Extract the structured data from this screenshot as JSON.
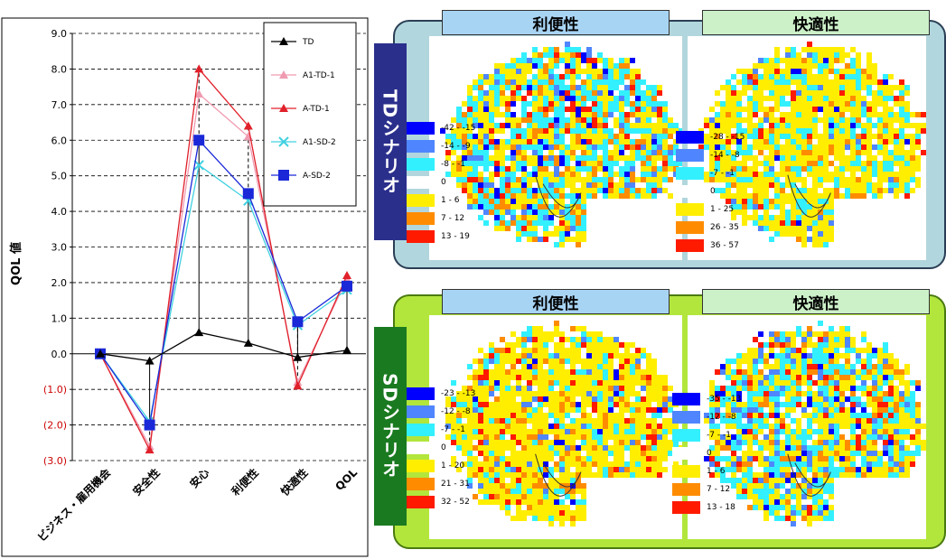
{
  "chart_data": [
    {
      "type": "line",
      "ylabel": "QOL 値",
      "ylim": [
        -3.0,
        9.0
      ],
      "yticks": [
        "9.0",
        "8.0",
        "7.0",
        "6.0",
        "5.0",
        "4.0",
        "3.0",
        "2.0",
        "1.0",
        "0.0",
        "(1.0)",
        "(2.0)",
        "(3.0)"
      ],
      "categories": [
        "ビジネス・雇用機会",
        "安全性",
        "安心",
        "利便性",
        "快適性",
        "QOL"
      ],
      "grid": true,
      "legend_position": "top-right",
      "series": [
        {
          "name": "TD",
          "color": "#000000",
          "marker": "triangle",
          "values": [
            0.0,
            -0.2,
            0.6,
            0.3,
            -0.1,
            0.1
          ]
        },
        {
          "name": "A1-TD-1",
          "color": "#f09ab0",
          "marker": "triangle",
          "values": [
            0.0,
            -2.6,
            7.3,
            6.1,
            -0.8,
            2.1
          ]
        },
        {
          "name": "A-TD-1",
          "color": "#e0202a",
          "marker": "triangle",
          "values": [
            0.0,
            -2.7,
            8.0,
            6.4,
            -0.9,
            2.2
          ]
        },
        {
          "name": "A1-SD-2",
          "color": "#40d0e0",
          "marker": "x",
          "values": [
            0.0,
            -1.9,
            5.3,
            4.3,
            0.8,
            1.8
          ]
        },
        {
          "name": "A-SD-2",
          "color": "#1a28d8",
          "marker": "square",
          "values": [
            0.0,
            -2.0,
            6.0,
            4.5,
            0.9,
            1.9
          ]
        }
      ]
    },
    {
      "type": "heatmap",
      "scenario": "TDシナリオ",
      "maps": [
        {
          "title": "利便性",
          "legend": [
            "-42 - -15",
            "-14 - -9",
            "-8 - -1",
            "0",
            "1 - 6",
            "7 - 12",
            "13 - 19"
          ]
        },
        {
          "title": "快適性",
          "legend": [
            "-28 - -15",
            "-14 - -8",
            "-7 - -1",
            "0",
            "1 - 25",
            "26 - 35",
            "36 - 57"
          ]
        }
      ]
    },
    {
      "type": "heatmap",
      "scenario": "SDシナリオ",
      "maps": [
        {
          "title": "利便性",
          "legend": [
            "-23 - -13",
            "-12 - -8",
            "-7 - -1",
            "0",
            "1 - 20",
            "21 - 31",
            "32 - 52"
          ]
        },
        {
          "title": "快適性",
          "legend": [
            "-35 - -13",
            "-12 - -8",
            "-7 - -1",
            "0",
            "1 - 6",
            "7 - 12",
            "13 - 18"
          ]
        }
      ]
    }
  ],
  "colors": {
    "legend_bins": [
      "#0000ff",
      "#4f86ff",
      "#33f0ff",
      "#ffffff",
      "#ffee00",
      "#ff8c00",
      "#ff1a00"
    ],
    "td_panel_bg": "#b2d6dd",
    "td_tab": "#2b2f8c",
    "sd_panel_bg": "#b2e63c",
    "sd_tab": "#1a7a20",
    "convenience_header": "#a8d4f4",
    "comfort_header": "#ccf0c8"
  }
}
